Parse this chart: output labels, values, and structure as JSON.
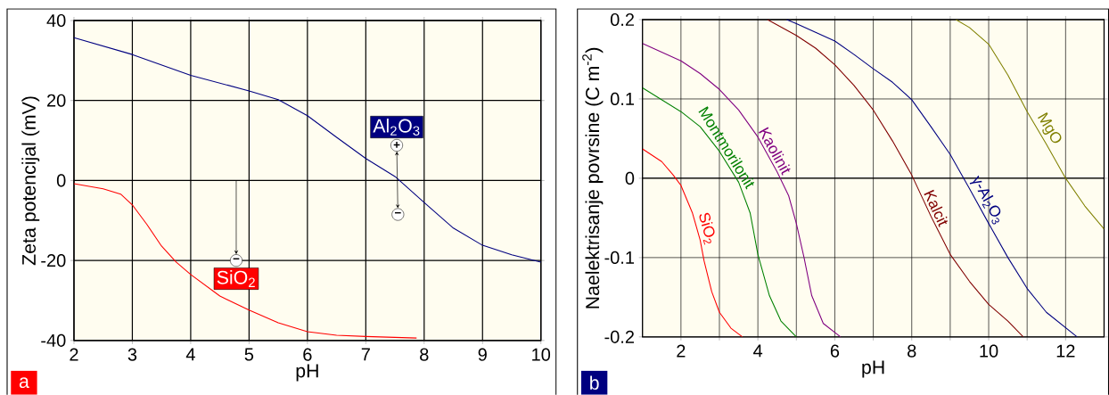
{
  "chart_data": [
    {
      "type": "line",
      "xlabel": "pH",
      "ylabel": "Zeta potencijal (mV)",
      "xlim": [
        2,
        10
      ],
      "ylim": [
        -40,
        40
      ],
      "xticks": [
        2,
        3,
        4,
        5,
        6,
        7,
        8,
        9,
        10
      ],
      "yticks": [
        -40,
        -20,
        0,
        20,
        40
      ],
      "grid": true,
      "series": [
        {
          "name": "Al$_{2}$O$_{3}$",
          "color": "#000080",
          "x": [
            2,
            3,
            4,
            5,
            5.5,
            6,
            6.5,
            7,
            7.5,
            8,
            8.5,
            9,
            9.5,
            10
          ],
          "values": [
            35.7,
            31.5,
            26.3,
            22.4,
            20.2,
            16.2,
            10.8,
            5.5,
            1,
            -5.5,
            -11.9,
            -16.2,
            -18.6,
            -20.4
          ]
        },
        {
          "name": "SiO$_{2}$",
          "color": "#ff0000",
          "x": [
            2,
            2.5,
            2.8,
            3,
            3.25,
            3.5,
            3.75,
            4,
            4.5,
            5,
            5.5,
            6,
            6.5,
            7,
            7.87
          ],
          "values": [
            -0.8,
            -2.1,
            -3.4,
            -6.1,
            -11,
            -16.4,
            -20.4,
            -23.5,
            -28.9,
            -32.4,
            -35.6,
            -37.8,
            -38.7,
            -39,
            -39.4
          ]
        }
      ],
      "annotations": [
        {
          "text": "+",
          "x": 7.53,
          "y": 8.8
        },
        {
          "text": "−",
          "x": 7.55,
          "y": -8.5
        },
        {
          "text": "−",
          "x": 4.78,
          "y": -20
        },
        "a"
      ]
    },
    {
      "type": "line",
      "xlabel": "pH",
      "ylabel": "Naelektrisanje povrsine (C m$^{-2}$)",
      "xlim": [
        1,
        13
      ],
      "ylim": [
        -0.2,
        0.2
      ],
      "xticks": [
        2,
        {
          "value": 3,
          "label": null
        },
        4,
        {
          "value": 5,
          "label": null
        },
        6,
        {
          "value": 7,
          "label": null
        },
        8,
        {
          "value": 9,
          "label": null
        },
        10,
        {
          "value": 11,
          "label": null
        },
        12
      ],
      "yticks": [
        -0.2,
        -0.1,
        0,
        0.1,
        0.2
      ],
      "grid": true,
      "series": [
        {
          "name": "SiO$_{2}$",
          "color": "#ff0000",
          "x": [
            1,
            1.5,
            1.8,
            2,
            2.3,
            2.5,
            2.6,
            2.8,
            3,
            3.3,
            3.6
          ],
          "values": [
            0.037,
            0.021,
            0.004,
            -0.009,
            -0.044,
            -0.078,
            -0.104,
            -0.143,
            -0.169,
            -0.189,
            -0.2
          ]
        },
        {
          "name": "Montmorilonit",
          "color": "#008000",
          "x": [
            1,
            2,
            2.5,
            3,
            3.5,
            3.8,
            4,
            4.3,
            4.6,
            5
          ],
          "values": [
            0.114,
            0.084,
            0.065,
            0.034,
            -0.005,
            -0.044,
            -0.096,
            -0.148,
            -0.18,
            -0.2
          ]
        },
        {
          "name": "Kaolinit",
          "color": "#800080",
          "x": [
            1,
            2,
            2.5,
            3,
            3.5,
            4,
            4.5,
            4.8,
            5,
            5.2,
            5.4,
            5.7,
            6.15
          ],
          "values": [
            0.17,
            0.148,
            0.132,
            0.112,
            0.086,
            0.052,
            0.008,
            -0.022,
            -0.057,
            -0.1,
            -0.148,
            -0.183,
            -0.2
          ]
        },
        {
          "name": "Kalcit",
          "color": "#800000",
          "x": [
            4.25,
            5,
            5.5,
            6,
            6.5,
            7,
            7.5,
            8,
            8.5,
            9,
            9.5,
            10,
            10.5,
            10.9
          ],
          "values": [
            0.2,
            0.18,
            0.164,
            0.143,
            0.117,
            0.086,
            0.047,
            0.004,
            -0.048,
            -0.096,
            -0.13,
            -0.159,
            -0.18,
            -0.2
          ]
        },
        {
          "name": "γ-Al$_{2}$O$_{3}$",
          "color": "#000080",
          "x": [
            4.75,
            5,
            5.5,
            6,
            6.5,
            7,
            7.5,
            8,
            8.5,
            9,
            9.5,
            10,
            10.5,
            11,
            11.5,
            12.3
          ],
          "values": [
            0.2,
            0.195,
            0.184,
            0.173,
            0.156,
            0.138,
            0.121,
            0.099,
            0.065,
            0.03,
            -0.013,
            -0.057,
            -0.1,
            -0.139,
            -0.169,
            -0.2
          ]
        },
        {
          "name": "MgO",
          "color": "#808000",
          "x": [
            9.15,
            9.5,
            10,
            10.5,
            11,
            11.5,
            12,
            12.5,
            13
          ],
          "values": [
            0.2,
            0.19,
            0.169,
            0.13,
            0.084,
            0.043,
            0,
            -0.035,
            -0.064
          ]
        }
      ],
      "annotations": [
        "b"
      ]
    }
  ]
}
